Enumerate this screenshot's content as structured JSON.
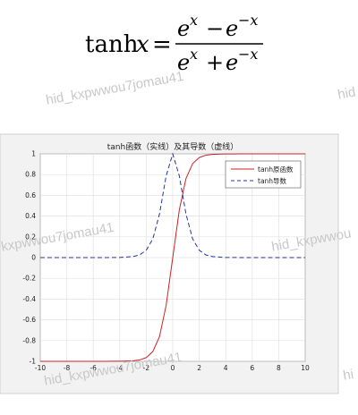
{
  "formula": {
    "lhs": "tanh",
    "var": "x",
    "numerator": {
      "a": "e",
      "a_exp": "x",
      "op": "−",
      "b": "e",
      "b_exp": "−x"
    },
    "denominator": {
      "a": "e",
      "a_exp": "x",
      "op": "+",
      "b": "e",
      "b_exp": "−x"
    },
    "equals": "="
  },
  "watermarks": [
    "hid_kxpwwou7jomau41",
    "hid",
    "kxpwwou7jomau41",
    "hid_kxpwwou",
    "hid_kxpwwou7jomau41",
    "hi"
  ],
  "chart_data": {
    "type": "line",
    "title": "tanh函数（实线）及其导数（虚线）",
    "xlabel": "",
    "ylabel": "",
    "xlim": [
      -10,
      10
    ],
    "ylim": [
      -1,
      1
    ],
    "xticks": [
      "-10",
      "-8",
      "-6",
      "-4",
      "-2",
      "0",
      "2",
      "4",
      "6",
      "8",
      "10"
    ],
    "yticks": [
      "1",
      "0.8",
      "0.6",
      "0.4",
      "0.2",
      "0",
      "-0.2",
      "-0.4",
      "-0.6",
      "-0.8",
      "-1"
    ],
    "grid": true,
    "legend_position": "top-right",
    "series": [
      {
        "name": "tanh原函数",
        "style": "solid",
        "color": "#cc2222",
        "x": [
          -10,
          -8,
          -6,
          -4,
          -3,
          -2.5,
          -2,
          -1.5,
          -1,
          -0.5,
          0,
          0.5,
          1,
          1.5,
          2,
          2.5,
          3,
          4,
          6,
          8,
          10
        ],
        "y": [
          -1,
          -1,
          -1,
          -0.999,
          -0.995,
          -0.987,
          -0.964,
          -0.905,
          -0.762,
          -0.462,
          0,
          0.462,
          0.762,
          0.905,
          0.964,
          0.987,
          0.995,
          0.999,
          1,
          1,
          1
        ]
      },
      {
        "name": "tanh导数",
        "style": "dashed",
        "color": "#2233aa",
        "x": [
          -10,
          -8,
          -6,
          -4,
          -3,
          -2.5,
          -2,
          -1.5,
          -1,
          -0.5,
          0,
          0.5,
          1,
          1.5,
          2,
          2.5,
          3,
          4,
          6,
          8,
          10
        ],
        "y": [
          0,
          0,
          0,
          0.001,
          0.01,
          0.026,
          0.071,
          0.181,
          0.42,
          0.786,
          1,
          0.786,
          0.42,
          0.181,
          0.071,
          0.026,
          0.01,
          0.001,
          0,
          0,
          0
        ]
      }
    ]
  }
}
